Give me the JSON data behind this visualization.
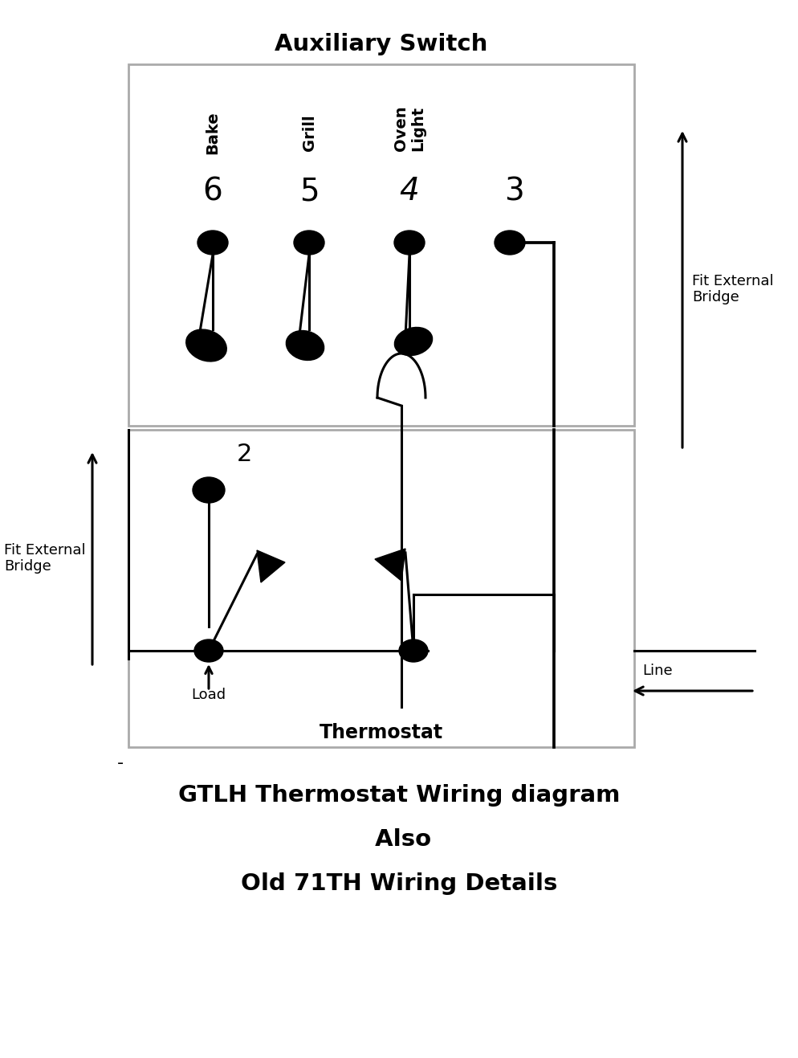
{
  "bg_color": "#ffffff",
  "title": "Auxiliary Switch",
  "thermostat_label": "Thermostat",
  "caption_lines": [
    "GTLH Thermostat Wiring diagram",
    " Also",
    "Old 71TH Wiring Details"
  ],
  "line_color": "#000000",
  "box_color": "#aaaaaa",
  "lw": 2.2,
  "fig_w": 9.95,
  "fig_h": 13.17,
  "dpi": 100
}
